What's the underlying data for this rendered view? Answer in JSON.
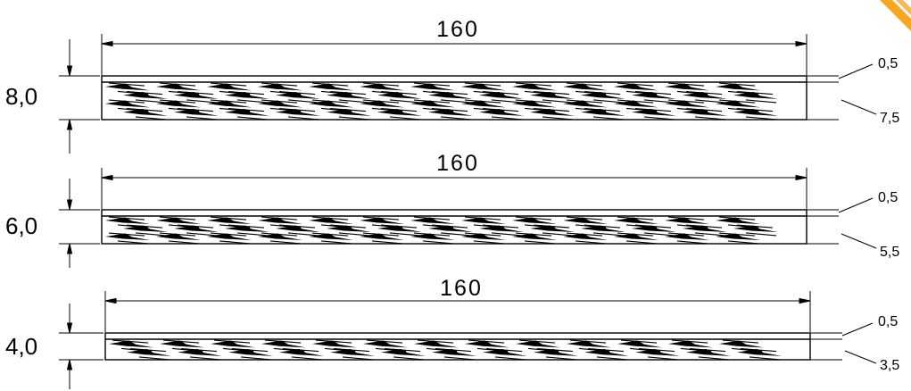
{
  "panels": [
    {
      "width_label": "160",
      "thickness_label": "8,0",
      "top_layer_label": "0,5",
      "bottom_layer_label": "7,5"
    },
    {
      "width_label": "160",
      "thickness_label": "6,0",
      "top_layer_label": "0,5",
      "bottom_layer_label": "5,5"
    },
    {
      "width_label": "160",
      "thickness_label": "4,0",
      "top_layer_label": "0,5",
      "bottom_layer_label": "3,5"
    }
  ],
  "colors": {
    "line": "#000000",
    "corner_accent": "#f5a623"
  }
}
